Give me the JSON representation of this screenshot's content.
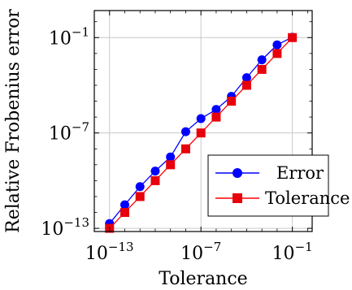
{
  "chart_data": {
    "type": "line",
    "title": "",
    "xlabel": "Tolerance",
    "ylabel": "Relative Frobenius error",
    "xscale": "log",
    "yscale": "log",
    "xlim_exp": [
      -14,
      0.3
    ],
    "ylim_exp": [
      -13.2,
      0.7
    ],
    "grid": true,
    "legend_position": "bottom-right",
    "x_ticks": [
      {
        "base": "10",
        "exp": "−13",
        "value": -13
      },
      {
        "base": "10",
        "exp": "−7",
        "value": -7
      },
      {
        "base": "10",
        "exp": "−1",
        "value": -1
      }
    ],
    "y_ticks": [
      {
        "base": "10",
        "exp": "−13",
        "value": -13
      },
      {
        "base": "10",
        "exp": "−7",
        "value": -7
      },
      {
        "base": "10",
        "exp": "−1",
        "value": -1
      }
    ],
    "x": [
      1e-13,
      1e-12,
      1e-11,
      1e-10,
      1e-09,
      1e-08,
      1e-07,
      1e-06,
      1e-05,
      0.0001,
      0.001,
      0.01,
      0.1
    ],
    "series": [
      {
        "name": "Error",
        "color": "#0000ff",
        "marker": "circle",
        "values": [
          2e-13,
          3e-12,
          4.2e-11,
          4e-10,
          3.1e-09,
          1.2e-07,
          8e-07,
          3e-06,
          2e-05,
          0.0003,
          0.004,
          0.035,
          0.105
        ]
      },
      {
        "name": "Tolerance",
        "color": "#ff0000",
        "marker": "square",
        "values": [
          1e-13,
          1e-12,
          1e-11,
          1e-10,
          1e-09,
          1e-08,
          1e-07,
          1e-06,
          1e-05,
          0.0001,
          0.001,
          0.01,
          0.1
        ]
      }
    ]
  }
}
